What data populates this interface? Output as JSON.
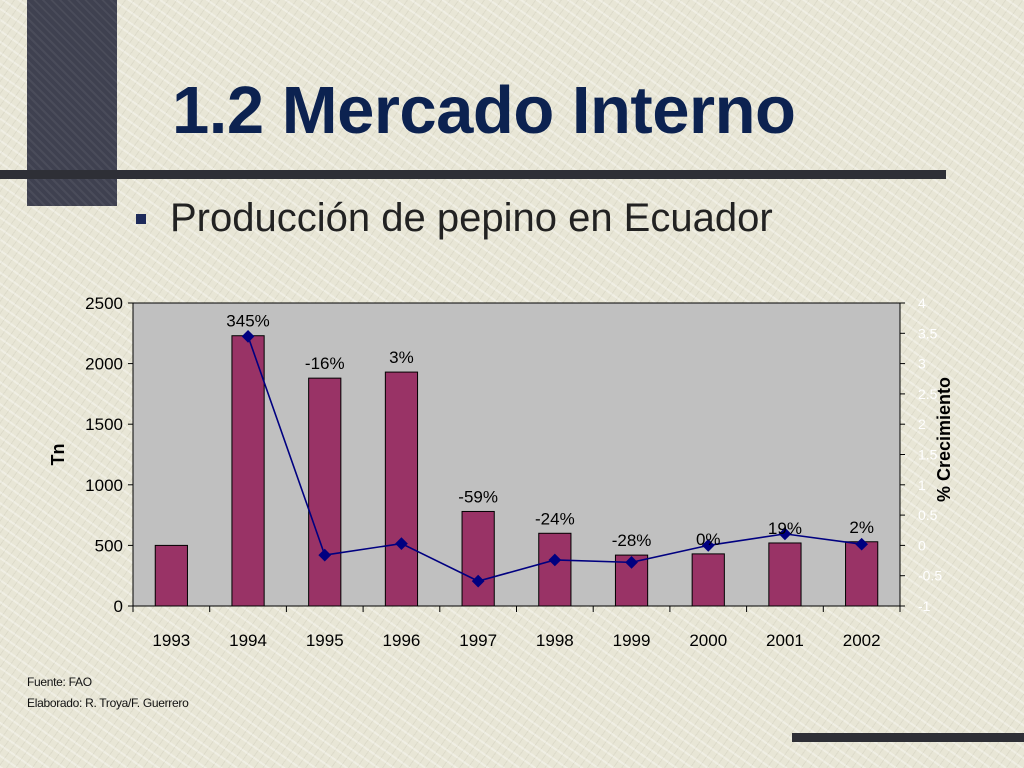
{
  "slide": {
    "title": "1.2 Mercado Interno",
    "subtitle": "Producción de pepino en Ecuador",
    "footer": [
      "Fuente: FAO",
      "Elaborado: R. Troya/F. Guerrero"
    ]
  },
  "chart_data": {
    "type": "bar",
    "categories": [
      "1993",
      "1994",
      "1995",
      "1996",
      "1997",
      "1998",
      "1999",
      "2000",
      "2001",
      "2002"
    ],
    "series": [
      {
        "type": "bar",
        "axis": "left",
        "color": "#993366",
        "values": [
          500,
          2230,
          1880,
          1930,
          780,
          600,
          420,
          430,
          520,
          530
        ]
      },
      {
        "type": "line",
        "axis": "right",
        "color": "#000080",
        "values": [
          null,
          3.45,
          -0.16,
          0.03,
          -0.59,
          -0.24,
          -0.28,
          0.0,
          0.19,
          0.02
        ],
        "labels": [
          "",
          "345%",
          "-16%",
          "3%",
          "-59%",
          "-24%",
          "-28%",
          "0%",
          "19%",
          "2%"
        ]
      }
    ],
    "ylabel": "Tn",
    "y2label": "% Crecimiento",
    "ylim": [
      0,
      2500
    ],
    "yticks": [
      0,
      500,
      1000,
      1500,
      2000,
      2500
    ],
    "y2lim": [
      -1,
      4
    ],
    "y2ticks": [
      "-1",
      "-0.5",
      "0",
      "0.5",
      "1",
      "1.5",
      "2",
      "2.5",
      "3",
      "3.5",
      "4"
    ],
    "plot_background": "#c0c0c0",
    "grid": false,
    "legend": "none"
  }
}
